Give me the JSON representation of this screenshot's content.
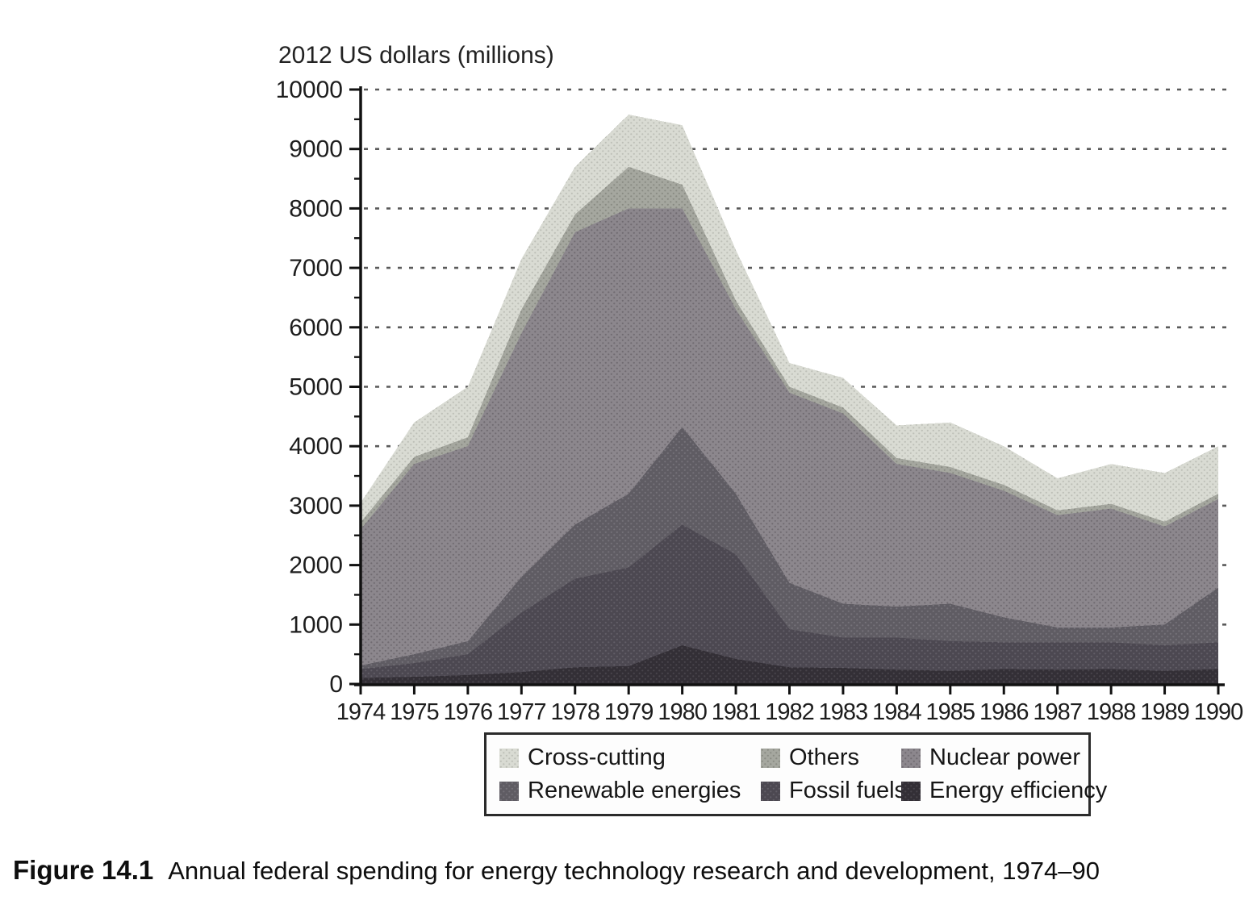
{
  "figure": {
    "label": "Figure 14.1",
    "caption": "Annual federal spending for energy technology research and development, 1974–90"
  },
  "chart_data": {
    "type": "area",
    "stacked": true,
    "title": "2012 US dollars (millions)",
    "xlabel": "",
    "ylabel": "2012 US dollars (millions)",
    "x": [
      1974,
      1975,
      1976,
      1977,
      1978,
      1979,
      1980,
      1981,
      1982,
      1983,
      1984,
      1985,
      1986,
      1987,
      1988,
      1989,
      1990
    ],
    "ylim": [
      0,
      10000
    ],
    "ytick_interval": 1000,
    "ytick_minor_interval": 500,
    "grid": "horizontal-dashed",
    "legend_position": "bottom-box-two-rows",
    "series": [
      {
        "name": "Energy efficiency",
        "color": "#332f36",
        "values": [
          100,
          120,
          150,
          200,
          280,
          300,
          650,
          420,
          280,
          270,
          240,
          220,
          250,
          240,
          250,
          220,
          250
        ]
      },
      {
        "name": "Fossil fuels",
        "color": "#4c4851",
        "values": [
          150,
          230,
          350,
          1000,
          1490,
          1660,
          2030,
          1760,
          640,
          510,
          540,
          500,
          450,
          460,
          450,
          430,
          450
        ]
      },
      {
        "name": "Renewable energies",
        "color": "#5f5c63",
        "values": [
          60,
          150,
          220,
          600,
          910,
          1240,
          1640,
          1020,
          780,
          570,
          520,
          630,
          420,
          250,
          250,
          350,
          920
        ]
      },
      {
        "name": "Nuclear power",
        "color": "#8c878d",
        "values": [
          2290,
          3200,
          3280,
          4100,
          4920,
          4800,
          3680,
          3100,
          3200,
          3200,
          2400,
          2200,
          2130,
          1890,
          2000,
          1650,
          1490
        ]
      },
      {
        "name": "Others",
        "color": "#a5a79f",
        "values": [
          120,
          120,
          150,
          400,
          300,
          700,
          400,
          150,
          100,
          100,
          100,
          100,
          100,
          80,
          80,
          80,
          90
        ]
      },
      {
        "name": "Cross-cutting",
        "color": "#d9dbd3",
        "values": [
          330,
          580,
          850,
          850,
          800,
          880,
          1000,
          850,
          400,
          500,
          550,
          750,
          650,
          540,
          670,
          820,
          800
        ]
      }
    ],
    "totals": [
      3050,
      4400,
      5000,
      7150,
      8700,
      9580,
      9400,
      7300,
      5400,
      5150,
      4350,
      4400,
      4000,
      3460,
      3700,
      3550,
      4000
    ],
    "legend_order": [
      "Cross-cutting",
      "Others",
      "Nuclear power",
      "Renewable energies",
      "Fossil fuels",
      "Energy efficiency"
    ]
  }
}
